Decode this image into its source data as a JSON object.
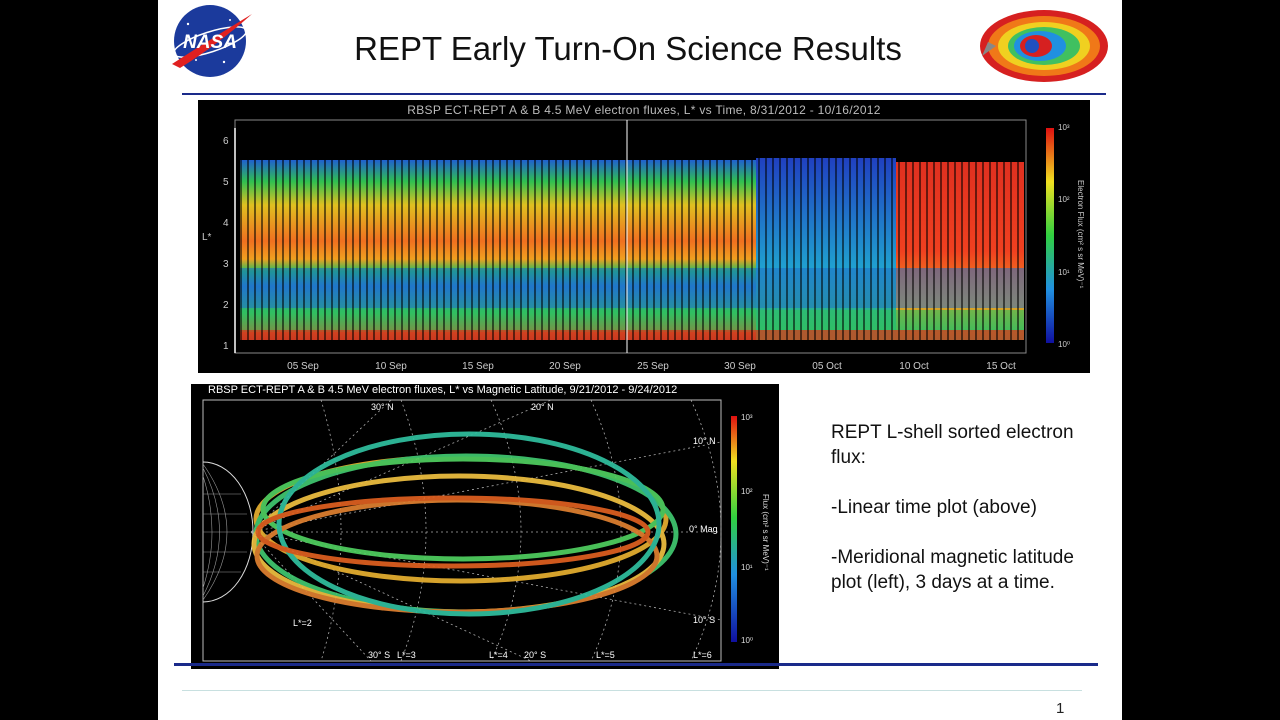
{
  "slide": {
    "title": "REPT Early Turn-On Science Results",
    "page_number": "1",
    "logo_text": "NASA"
  },
  "top_plot": {
    "title": "RBSP ECT-REPT A & B   4.5 MeV electron fluxes, L* vs Time, 8/31/2012 - 10/16/2012",
    "y_axis_label": "L*",
    "y_ticks": [
      "1",
      "2",
      "3",
      "4",
      "5",
      "6"
    ],
    "x_ticks": [
      "05 Sep",
      "10 Sep",
      "15 Sep",
      "20 Sep",
      "25 Sep",
      "30 Sep",
      "05 Oct",
      "10 Oct",
      "15 Oct"
    ],
    "colorbar_label": "Electron Flux (cm² s sr MeV)⁻¹",
    "colorbar_ticks": [
      "10⁰",
      "10¹",
      "10²",
      "10³"
    ]
  },
  "bottom_plot": {
    "title": "RBSP ECT-REPT A & B  4.5 MeV electron fluxes, L* vs Magnetic Latitude, 9/21/2012 - 9/24/2012",
    "latitude_labels": [
      "30° N",
      "20° N",
      "10° N",
      "0° Mag",
      "10° S",
      "20° S",
      "30° S"
    ],
    "l_shell_labels": [
      "L*=2",
      "L*=3",
      "L*=4",
      "L*=5",
      "L*=6"
    ],
    "colorbar_label": "Flux (cm² s sr MeV)⁻¹",
    "colorbar_ticks": [
      "10³",
      "10²",
      "10¹",
      "10⁰"
    ]
  },
  "notes": {
    "p1": "REPT L-shell sorted electron flux:",
    "p2": "-Linear time plot (above)",
    "p3": "-Meridional magnetic latitude plot (left), 3 days at a time."
  }
}
